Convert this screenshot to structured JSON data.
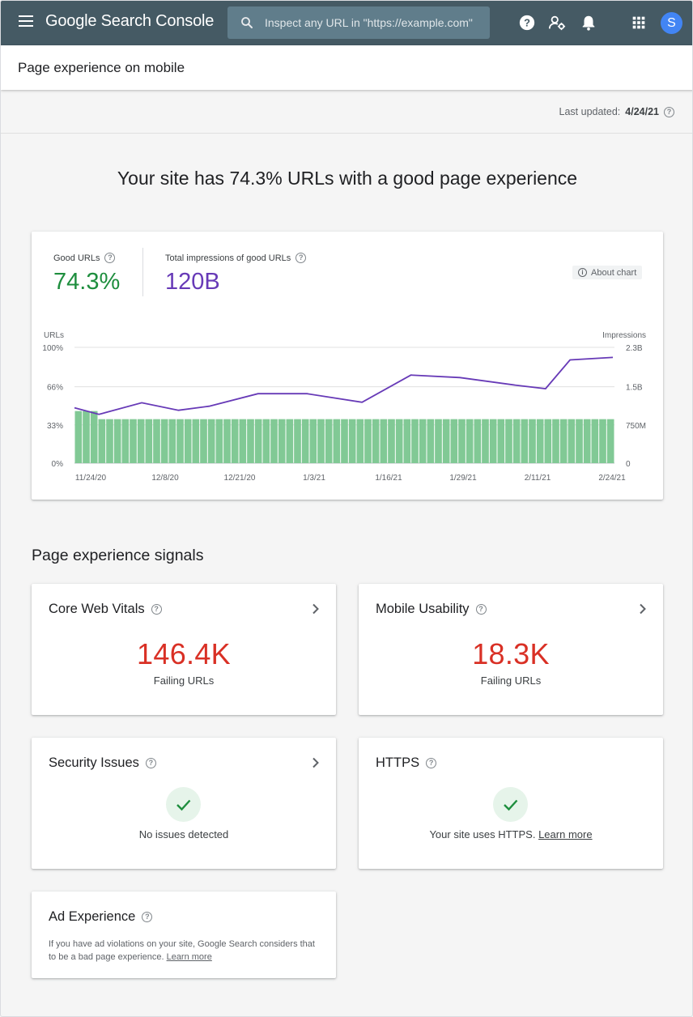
{
  "app": {
    "brand": "Google Search Console",
    "search_placeholder": "Inspect any URL in \"https://example.com\"",
    "avatar_letter": "S"
  },
  "page": {
    "title": "Page experience on mobile",
    "last_updated_label": "Last updated:",
    "last_updated_value": "4/24/21",
    "headline": "Your site has 74.3% URLs with a good page experience"
  },
  "summary": {
    "good_urls_label": "Good URLs",
    "good_urls_value": "74.3%",
    "impressions_label": "Total impressions of good URLs",
    "impressions_value": "120B",
    "about_chart": "About chart"
  },
  "colors": {
    "topbar": "#455a64",
    "good": "#1e8e3e",
    "impressions": "#673ab7",
    "bars": "#81c995",
    "failing": "#d93025"
  },
  "chart_data": {
    "type": "bar",
    "left_axis_label": "URLs",
    "right_axis_label": "Impressions",
    "left_ticks": [
      "100%",
      "66%",
      "33%",
      "0%"
    ],
    "right_ticks": [
      "2.3B",
      "1.5B",
      "750M",
      "0"
    ],
    "x_ticks": [
      "11/24/20",
      "12/8/20",
      "12/21/20",
      "1/3/21",
      "1/16/21",
      "1/29/21",
      "2/11/21",
      "2/24/21"
    ],
    "ylim": [
      0,
      100
    ],
    "y2lim": [
      0,
      2.3
    ],
    "series": [
      {
        "name": "Good URLs",
        "type": "bar",
        "values": [
          45,
          45,
          45,
          38,
          38,
          38,
          38,
          38,
          38,
          38,
          38,
          38,
          38,
          38,
          38,
          38,
          38,
          38,
          38,
          38,
          38,
          38,
          38,
          38,
          38,
          38,
          38,
          38,
          38,
          38,
          38,
          38,
          38,
          38,
          38,
          38,
          38,
          38,
          38,
          38,
          38,
          38,
          38,
          38,
          38,
          38,
          38,
          38,
          38,
          38,
          38,
          38,
          38,
          38,
          38,
          38,
          38,
          38,
          38,
          38,
          38,
          38,
          38,
          38,
          38,
          38,
          38,
          38,
          38
        ]
      },
      {
        "name": "Impressions of good URLs",
        "type": "line",
        "points": [
          [
            0,
            1.1
          ],
          [
            4,
            0.97
          ],
          [
            11,
            1.2
          ],
          [
            17,
            1.05
          ],
          [
            22,
            1.13
          ],
          [
            30,
            1.38
          ],
          [
            38,
            1.38
          ],
          [
            47,
            1.21
          ],
          [
            55,
            1.75
          ],
          [
            63,
            1.7
          ],
          [
            72,
            1.55
          ],
          [
            77,
            1.48
          ],
          [
            81,
            2.05
          ],
          [
            88,
            2.1
          ]
        ]
      }
    ]
  },
  "signals": {
    "section_title": "Page experience signals",
    "core_web_vitals": {
      "title": "Core Web Vitals",
      "value": "146.4K",
      "sub": "Failing URLs"
    },
    "mobile_usability": {
      "title": "Mobile Usability",
      "value": "18.3K",
      "sub": "Failing URLs"
    },
    "security": {
      "title": "Security Issues",
      "status": "No issues detected"
    },
    "https": {
      "title": "HTTPS",
      "status": "Your site uses HTTPS.",
      "link": "Learn more"
    },
    "ad_experience": {
      "title": "Ad Experience",
      "text": "If you have ad violations on your site, Google Search considers that to be a bad page experience.",
      "link": "Learn more"
    }
  }
}
